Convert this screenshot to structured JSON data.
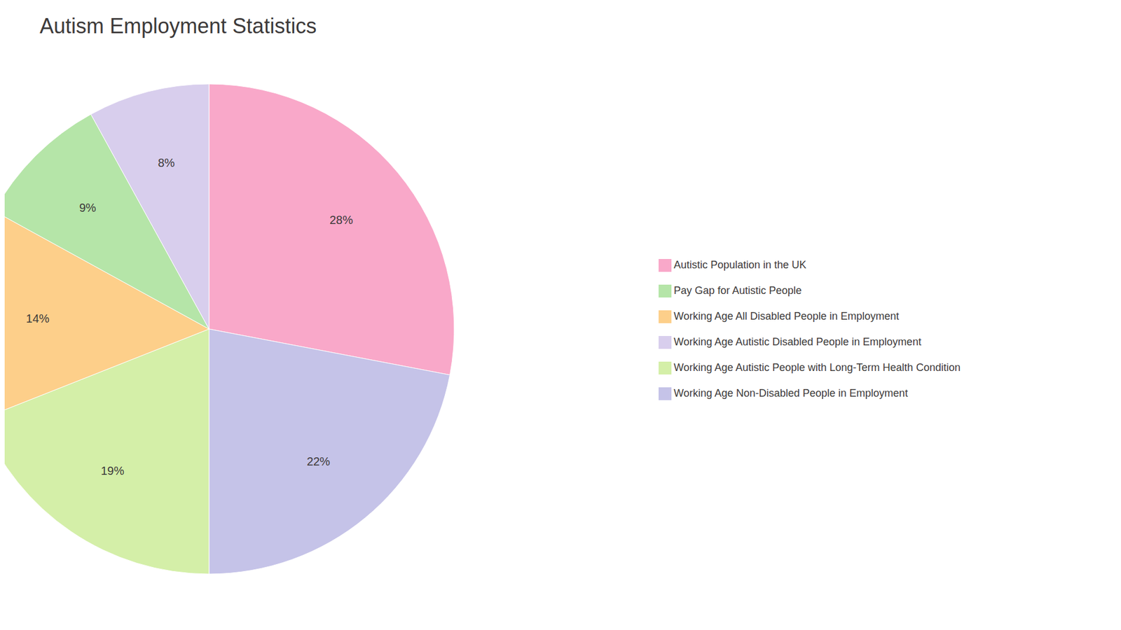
{
  "chart_data": {
    "type": "pie",
    "title": "Autism Employment Statistics",
    "categories": [
      "Autistic Population in the UK",
      "Working Age Non-Disabled People in Employment",
      "Working Age Autistic People with Long-Term Health Condition",
      "Working Age All Disabled People in Employment",
      "Pay Gap for Autistic People",
      "Working Age Autistic Disabled People in Employment"
    ],
    "values": [
      28,
      22,
      19,
      14,
      9,
      8
    ],
    "value_labels": [
      "28%",
      "22%",
      "19%",
      "14%",
      "9%",
      "8%"
    ],
    "colors": [
      "#F9A8C9",
      "#C5C3E8",
      "#D4EFA8",
      "#FDCF8A",
      "#B5E5A8",
      "#D8CEED"
    ],
    "data_labels": true,
    "legend": "right"
  }
}
